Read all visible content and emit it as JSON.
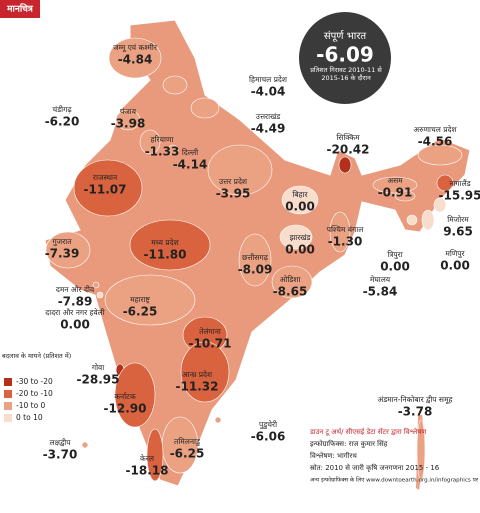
{
  "header": {
    "logo": "मानचित्र"
  },
  "summary": {
    "title": "संपूर्ण भारत",
    "value": -6.09,
    "value_label": "-6.09",
    "caption": "प्रतिशत गिरावट 2010-11 से 2015-16 के दौरान"
  },
  "legend": {
    "title": "बदलाव के मायने (प्रतिशत में)",
    "items": [
      {
        "label": "-30 to -20",
        "range": [
          -30,
          -20
        ],
        "color": "#b3301d"
      },
      {
        "label": "-20 to -10",
        "range": [
          -20,
          -10
        ],
        "color": "#d9623f"
      },
      {
        "label": "-10 to 0",
        "range": [
          -10,
          0
        ],
        "color": "#eba283"
      },
      {
        "label": "0 to 10",
        "range": [
          0,
          10
        ],
        "color": "#f8dccc"
      }
    ]
  },
  "regions": [
    {
      "name": "जम्मू एवं कश्मीर",
      "value": -4.84,
      "value_label": "-4.84"
    },
    {
      "name": "हिमाचल प्रदेश",
      "value": -4.04,
      "value_label": "-4.04"
    },
    {
      "name": "चंडीगढ़",
      "value": -6.2,
      "value_label": "-6.20"
    },
    {
      "name": "पंजाब",
      "value": -3.98,
      "value_label": "-3.98"
    },
    {
      "name": "उत्तराखंड",
      "value": -4.49,
      "value_label": "-4.49"
    },
    {
      "name": "हरियाणा",
      "value": -1.33,
      "value_label": "-1.33"
    },
    {
      "name": "दिल्ली",
      "value": -4.14,
      "value_label": "-4.14"
    },
    {
      "name": "अरुणाचल प्रदेश",
      "value": -4.56,
      "value_label": "-4.56"
    },
    {
      "name": "सिक्किम",
      "value": -20.42,
      "value_label": "-20.42"
    },
    {
      "name": "राजस्थान",
      "value": -11.07,
      "value_label": "-11.07"
    },
    {
      "name": "उत्तर प्रदेश",
      "value": -3.95,
      "value_label": "-3.95"
    },
    {
      "name": "बिहार",
      "value": 0,
      "value_label": "0.00"
    },
    {
      "name": "असम",
      "value": -0.91,
      "value_label": "-0.91"
    },
    {
      "name": "नागालैंड",
      "value": -15.95,
      "value_label": "-15.95"
    },
    {
      "name": "झारखंड",
      "value": 0,
      "value_label": "0.00"
    },
    {
      "name": "पश्चिम बंगाल",
      "value": -1.3,
      "value_label": "-1.30"
    },
    {
      "name": "मिजोरम",
      "value": 9.65,
      "value_label": "9.65"
    },
    {
      "name": "गुजरात",
      "value": -7.39,
      "value_label": "-7.39"
    },
    {
      "name": "मध्य प्रदेश",
      "value": -11.8,
      "value_label": "-11.80"
    },
    {
      "name": "छत्तीसगढ़",
      "value": -8.09,
      "value_label": "-8.09"
    },
    {
      "name": "त्रिपुरा",
      "value": 0,
      "value_label": "0.00"
    },
    {
      "name": "मणिपुर",
      "value": 0,
      "value_label": "0.00"
    },
    {
      "name": "ओडिशा",
      "value": -8.65,
      "value_label": "-8.65"
    },
    {
      "name": "मेघालय",
      "value": -5.84,
      "value_label": "-5.84"
    },
    {
      "name": "दमन और दीव",
      "value": -7.89,
      "value_label": "-7.89"
    },
    {
      "name": "दादरा और नगर हवेली",
      "value": 0,
      "value_label": "0.00"
    },
    {
      "name": "महाराष्ट्र",
      "value": -6.25,
      "value_label": "-6.25"
    },
    {
      "name": "तेलंगाना",
      "value": -10.71,
      "value_label": "-10.71"
    },
    {
      "name": "आन्ध्र प्रदेश",
      "value": -11.32,
      "value_label": "-11.32"
    },
    {
      "name": "गोवा",
      "value": -28.95,
      "value_label": "-28.95"
    },
    {
      "name": "कर्नाटक",
      "value": -12.9,
      "value_label": "-12.90"
    },
    {
      "name": "अंडमान-निकोबार द्वीप समूह",
      "value": -3.78,
      "value_label": "-3.78"
    },
    {
      "name": "पुडुचेरी",
      "value": -6.06,
      "value_label": "-6.06"
    },
    {
      "name": "लक्षद्वीप",
      "value": -3.7,
      "value_label": "-3.70"
    },
    {
      "name": "तमिलनाडु",
      "value": -6.25,
      "value_label": "-6.25"
    },
    {
      "name": "केरल",
      "value": -18.18,
      "value_label": "-18.18"
    }
  ],
  "credits": [
    "डाउन टू अर्थ/ सीएसई डेटा सेंटर द्वारा विश्लेषण",
    "इन्फोग्राफिक्स: राज कुमार सिंह",
    "विश्लेषण: भागीरथ",
    "स्रोत: 2010 से जारी कृषि जनगणना 2015 - 16",
    "अन्य इन्फोग्राफिक्स के लिए www.downtoearth.org.in/infographics पर जाएं"
  ]
}
